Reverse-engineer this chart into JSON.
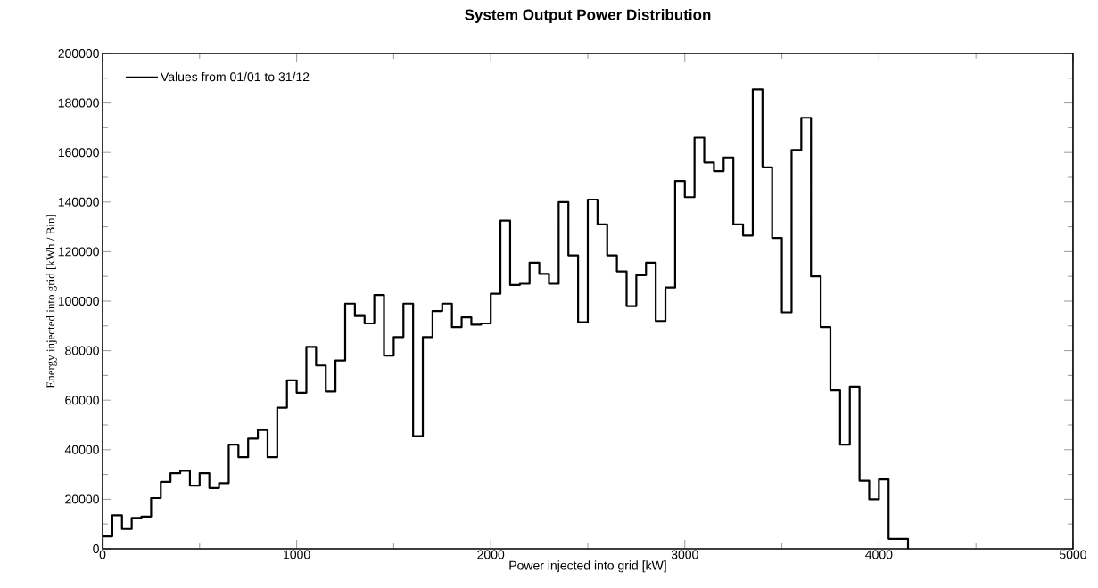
{
  "chart_data": {
    "type": "histogram",
    "title": "System Output Power Distribution",
    "xlabel": "Power injected into grid [kW]",
    "ylabel": "Energy injected into grid [kWh / Bin]",
    "bins": [
      0,
      50,
      100,
      150,
      200,
      250,
      300,
      350,
      400,
      450,
      500,
      550,
      600,
      650,
      700,
      750,
      800,
      850,
      900,
      950,
      1000,
      1050,
      1100,
      1150,
      1200,
      1250,
      1300,
      1350,
      1400,
      1450,
      1500,
      1550,
      1600,
      1650,
      1700,
      1750,
      1800,
      1850,
      1900,
      1950,
      2000,
      2050,
      2100,
      2150,
      2200,
      2250,
      2300,
      2350,
      2400,
      2450,
      2500,
      2550,
      2600,
      2650,
      2700,
      2750,
      2800,
      2850,
      2900,
      2950,
      3000,
      3050,
      3100,
      3150,
      3200,
      3250,
      3300,
      3350,
      3400,
      3450,
      3500,
      3550,
      3600,
      3650,
      3700,
      3750,
      3800,
      3850,
      3900,
      3950,
      4000,
      4050,
      4100,
      4150
    ],
    "series": [
      {
        "name": "Values from 01/01 to 31/12",
        "color": "#000000",
        "values": [
          5000,
          13500,
          8000,
          12500,
          13000,
          20500,
          27000,
          30500,
          31500,
          25500,
          30500,
          24500,
          26500,
          42000,
          37000,
          44500,
          48000,
          37000,
          57000,
          68000,
          63000,
          81500,
          74000,
          63500,
          76000,
          99000,
          94000,
          91000,
          102500,
          78000,
          85500,
          99000,
          45500,
          85500,
          96000,
          99000,
          89500,
          93500,
          90500,
          91000,
          103000,
          132500,
          106500,
          107000,
          115500,
          111000,
          107000,
          140000,
          118500,
          91500,
          141000,
          131000,
          118500,
          112000,
          98000,
          110500,
          115500,
          92000,
          105500,
          148500,
          142000,
          166000,
          156000,
          152500,
          158000,
          131000,
          126500,
          185500,
          154000,
          125500,
          95500,
          161000,
          174000,
          110000,
          89500,
          64000,
          42000,
          65500,
          27500,
          20000,
          28000,
          4000,
          4000
        ]
      }
    ],
    "xlim": [
      0,
      5000
    ],
    "ylim": [
      0,
      200000
    ],
    "xticks": [
      0,
      1000,
      2000,
      3000,
      4000,
      5000
    ],
    "yticks": [
      0,
      20000,
      40000,
      60000,
      80000,
      100000,
      120000,
      140000,
      160000,
      180000,
      200000
    ],
    "legend": "top left"
  }
}
